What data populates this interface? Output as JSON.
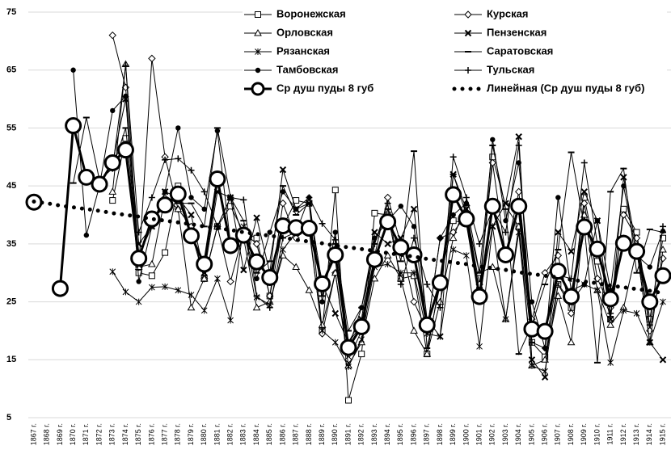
{
  "chart_data": {
    "type": "line",
    "categories": [
      "1867 г.",
      "1868 г.",
      "1869 г.",
      "1870 г.",
      "1871 г.",
      "1872 г.",
      "1873 г.",
      "1874 г.",
      "1875 г.",
      "1876 г.",
      "1877 г.",
      "1878 г.",
      "1879 г.",
      "1880 г.",
      "1881 г.",
      "1882 г.",
      "1883 г.",
      "1884 г.",
      "1885 г.",
      "1886 г.",
      "1887 г.",
      "1888 г.",
      "1889 г.",
      "1890 г.",
      "1891 г.",
      "1892 г.",
      "1893 г.",
      "1894 г.",
      "1895 г.",
      "1896 г.",
      "1897 г.",
      "1898 г.",
      "1899 г.",
      "1900 г.",
      "1901 г.",
      "1902 г.",
      "1903 г.",
      "1904 г.",
      "1905 г.",
      "1906 г.",
      "1907 г.",
      "1908 г.",
      "1909 г.",
      "1910 г.",
      "1911 г.",
      "1912 г.",
      "1913 г.",
      "1914 г.",
      "1915 г."
    ],
    "ylim": [
      5,
      75
    ],
    "yticks": [
      5,
      15,
      25,
      35,
      45,
      55,
      65,
      75
    ],
    "grid": true,
    "series": [
      {
        "name": "Воронежская",
        "color": "#000000",
        "marker": "square",
        "values": [
          null,
          null,
          null,
          null,
          null,
          null,
          42.5,
          53.2,
          30,
          29.5,
          33.5,
          45,
          37,
          29,
          38,
          41.5,
          37,
          36,
          26,
          38,
          42.5,
          42,
          20,
          44.3,
          8,
          16,
          40.3,
          40,
          29,
          29.5,
          16,
          29,
          39,
          38.5,
          27,
          50,
          41.5,
          38,
          18,
          15.5,
          28,
          24,
          43,
          32,
          22,
          41,
          37,
          22,
          36
        ]
      },
      {
        "name": "Курская",
        "color": "#000000",
        "marker": "diamond",
        "values": [
          null,
          null,
          null,
          null,
          null,
          null,
          71,
          62,
          31,
          67,
          50,
          41,
          38,
          29,
          38,
          28.5,
          37,
          35,
          26,
          42,
          36,
          38,
          19.5,
          30,
          15,
          20,
          33,
          43,
          35,
          25,
          20,
          36,
          37,
          40,
          28,
          49,
          33,
          44,
          22,
          30,
          33,
          23,
          42,
          29,
          24,
          40,
          36,
          20,
          32.5
        ]
      },
      {
        "name": "Орловская",
        "color": "#000000",
        "marker": "triangle",
        "values": [
          null,
          null,
          null,
          null,
          null,
          null,
          44,
          66,
          31,
          31.5,
          43,
          41,
          24,
          29,
          38,
          43,
          36,
          24,
          25,
          33,
          31,
          27,
          21,
          30,
          14,
          18,
          29,
          33,
          29,
          20,
          16,
          25,
          36,
          42,
          30,
          31,
          22,
          38,
          14,
          15,
          26,
          18,
          40,
          27,
          21,
          24,
          34,
          18,
          34
        ]
      },
      {
        "name": "Пензенская",
        "color": "#000000",
        "marker": "x",
        "values": [
          null,
          null,
          null,
          null,
          null,
          null,
          49,
          60,
          35,
          38,
          44,
          43,
          40,
          30,
          44,
          43,
          30.5,
          39.5,
          30,
          47.8,
          41,
          42,
          28,
          23,
          18,
          22,
          37,
          35,
          36,
          41,
          22,
          19,
          47,
          41,
          26,
          38,
          42,
          53.5,
          15,
          12,
          37,
          33.7,
          44,
          39,
          22,
          46.5,
          34,
          18,
          15
        ]
      },
      {
        "name": "Рязанская",
        "color": "#000000",
        "marker": "star",
        "values": [
          null,
          null,
          null,
          null,
          null,
          null,
          30.2,
          26.7,
          25,
          27.5,
          27.6,
          27,
          26.2,
          23.5,
          29,
          21.8,
          38,
          25.8,
          24.5,
          34,
          37,
          37.3,
          20,
          18,
          13.8,
          18.5,
          31,
          31.5,
          30,
          30,
          19.5,
          19,
          34,
          33,
          17.3,
          38,
          22,
          37,
          14,
          13,
          28,
          25,
          28,
          27,
          14.5,
          23.5,
          23,
          18,
          25
        ]
      },
      {
        "name": "Саратовская",
        "color": "#000000",
        "marker": "dash",
        "values": [
          null,
          null,
          null,
          45.5,
          56.8,
          46,
          48,
          55,
          33,
          38,
          43,
          42,
          42,
          38,
          55,
          43,
          39,
          30,
          32,
          45,
          40,
          42,
          26,
          35,
          20,
          24,
          35,
          41,
          32,
          51,
          17,
          28,
          47,
          40,
          30,
          52,
          41,
          16,
          21,
          28,
          34,
          50.8,
          38,
          14.5,
          44,
          48,
          30,
          37.5,
          37
        ]
      },
      {
        "name": "Тамбовская",
        "color": "#000000",
        "marker": "dot",
        "values": [
          null,
          null,
          null,
          65,
          36.5,
          45,
          58,
          60.5,
          28.5,
          38,
          44,
          55,
          43,
          41,
          54.5,
          35,
          37,
          29,
          37,
          44,
          41,
          43,
          25,
          37,
          17,
          24,
          36,
          39,
          41.5,
          38,
          20,
          36,
          40,
          42,
          26,
          53,
          39,
          49,
          25,
          17,
          43,
          27,
          28,
          39,
          27,
          45,
          33,
          31,
          37.2
        ]
      },
      {
        "name": "Тульская",
        "color": "#000000",
        "marker": "plus",
        "values": [
          null,
          null,
          null,
          null,
          null,
          null,
          48,
          65.8,
          37,
          43,
          49.5,
          49.7,
          47.7,
          44,
          38,
          43,
          42.6,
          26,
          24,
          36,
          37,
          43,
          38.5,
          35.7,
          18,
          21,
          35,
          42,
          28,
          36,
          28,
          24,
          50,
          43,
          35,
          41,
          37,
          52,
          18,
          17,
          29.6,
          29,
          49,
          35,
          23,
          36,
          34,
          21,
          38
        ]
      },
      {
        "name": "Ср душ пуды 8 губ",
        "color": "#000000",
        "marker": "circle",
        "width": 3,
        "values": [
          42.2,
          null,
          27.3,
          55.4,
          46.5,
          45.3,
          49,
          51.2,
          32.5,
          39.3,
          41.7,
          43.6,
          36.4,
          31.5,
          46.2,
          34.7,
          36.5,
          31.9,
          29.2,
          38.1,
          37.8,
          37.7,
          28.1,
          33.1,
          17.1,
          20.7,
          32.3,
          38.8,
          34.4,
          33.1,
          21,
          28.3,
          43.5,
          39.3,
          25.9,
          41.5,
          33.1,
          41.5,
          20.3,
          19.9,
          30.3,
          25.9,
          37.9,
          34.1,
          25.5,
          35.1,
          33.7,
          25,
          29.5
        ]
      },
      {
        "name": "Линейная (Ср душ пуды 8 губ)",
        "color": "#000000",
        "marker": "none",
        "dash": "dotted",
        "width": 5,
        "values": [
          42.3,
          42.0,
          41.6,
          41.3,
          41.0,
          40.7,
          40.3,
          40.0,
          39.7,
          39.3,
          39.0,
          38.7,
          38.4,
          38.0,
          37.7,
          37.4,
          37.0,
          36.7,
          36.4,
          36.1,
          35.7,
          35.4,
          35.1,
          34.7,
          34.4,
          34.1,
          33.8,
          33.4,
          33.1,
          32.8,
          32.4,
          32.1,
          31.8,
          31.5,
          31.1,
          30.8,
          30.5,
          30.1,
          29.8,
          29.5,
          29.2,
          28.8,
          28.5,
          28.2,
          27.8,
          27.5,
          27.2,
          26.9,
          26.5
        ]
      }
    ]
  }
}
